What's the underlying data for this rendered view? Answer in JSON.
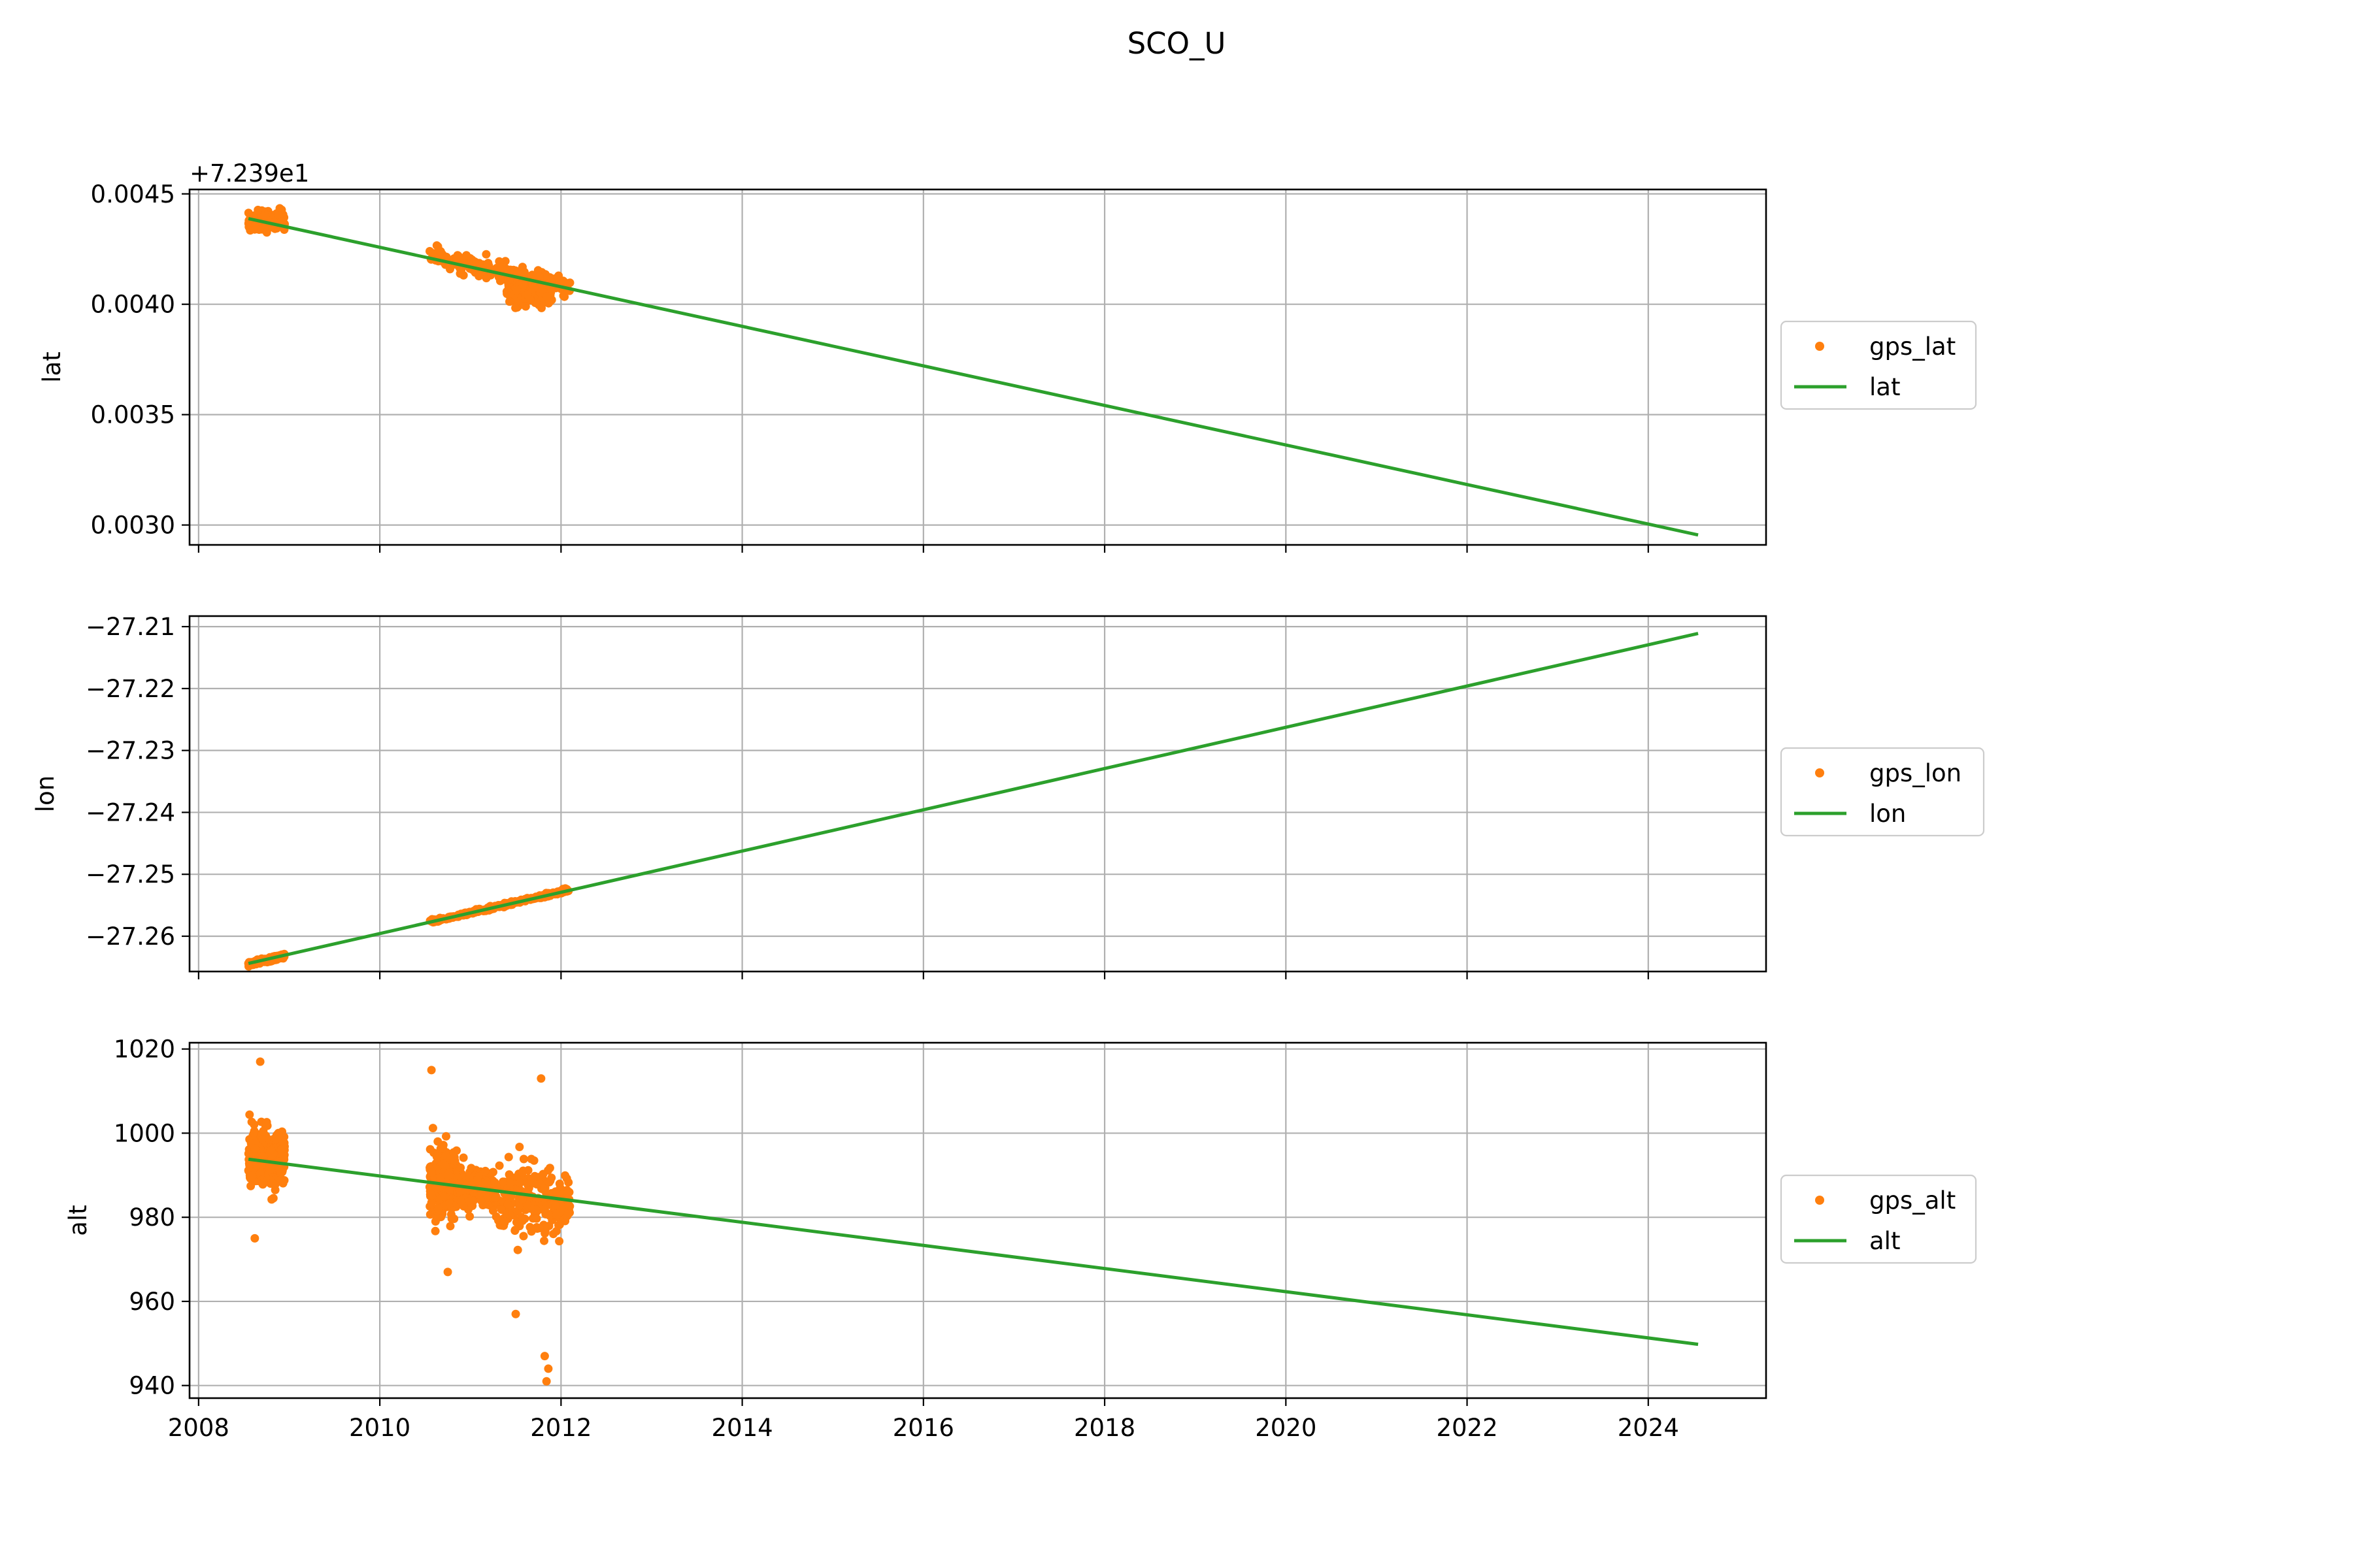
{
  "figure": {
    "suptitle": "SCO_U"
  },
  "colors": {
    "scatter": "#ff7f0e",
    "line": "#2ca02c",
    "grid": "#b0b0b0",
    "axes": "#000000"
  },
  "chart_data": [
    {
      "type": "scatter",
      "title": "",
      "xlabel": "",
      "ylabel": "lat",
      "y_offset_label": "+7.239e1",
      "xlim": [
        2007.9,
        2025.3
      ],
      "ylim": [
        0.00291,
        0.00452
      ],
      "xticks": [
        2008,
        2010,
        2012,
        2014,
        2016,
        2018,
        2020,
        2022,
        2024
      ],
      "xtick_labels_visible": false,
      "yticks": [
        0.003,
        0.0035,
        0.004,
        0.0045
      ],
      "ytick_labels": [
        "0.0030",
        "0.0035",
        "0.0040",
        "0.0045"
      ],
      "grid": true,
      "legend_placement": "center right, outside axes",
      "series": [
        {
          "name": "gps_lat",
          "kind": "points",
          "clusters": [
            {
              "x_range": [
                2008.55,
                2008.95
              ],
              "y_center": 0.004375,
              "y_spread": 4e-05
            },
            {
              "x_range": [
                2010.55,
                2012.1
              ],
              "y_center_start": 0.00422,
              "y_center_end": 0.00407,
              "y_spread": 4e-05
            },
            {
              "x_range": [
                2011.4,
                2011.9
              ],
              "y_center": 0.00405,
              "y_spread": 5e-05
            }
          ]
        },
        {
          "name": "lat",
          "kind": "line",
          "x": [
            2008.55,
            2024.55
          ],
          "y": [
            0.004388,
            0.002955
          ]
        }
      ]
    },
    {
      "type": "scatter",
      "title": "",
      "xlabel": "",
      "ylabel": "lon",
      "xlim": [
        2007.9,
        2025.3
      ],
      "ylim": [
        -27.2657,
        -27.2083
      ],
      "xticks": [
        2008,
        2010,
        2012,
        2014,
        2016,
        2018,
        2020,
        2022,
        2024
      ],
      "xtick_labels_visible": false,
      "yticks": [
        -27.26,
        -27.25,
        -27.24,
        -27.23,
        -27.22,
        -27.21
      ],
      "ytick_labels": [
        "−27.26",
        "−27.25",
        "−27.24",
        "−27.23",
        "−27.22",
        "−27.21"
      ],
      "grid": true,
      "legend_placement": "center right, outside axes",
      "series": [
        {
          "name": "gps_lon",
          "kind": "points",
          "clusters": [
            {
              "x_range": [
                2008.55,
                2008.95
              ],
              "y_center_start": -27.2645,
              "y_center_end": -27.2632,
              "y_spread": 0.0003
            },
            {
              "x_range": [
                2010.55,
                2012.1
              ],
              "y_center_start": -27.2577,
              "y_center_end": -27.2525,
              "y_spread": 0.0003
            }
          ]
        },
        {
          "name": "lon",
          "kind": "line",
          "x": [
            2008.55,
            2024.55
          ],
          "y": [
            -27.2644,
            -27.2111
          ]
        }
      ]
    },
    {
      "type": "scatter",
      "title": "",
      "xlabel": "",
      "ylabel": "alt",
      "xlim": [
        2007.9,
        2025.3
      ],
      "ylim": [
        937.0,
        1021.5
      ],
      "xticks": [
        2008,
        2010,
        2012,
        2014,
        2016,
        2018,
        2020,
        2022,
        2024
      ],
      "xtick_labels": [
        "2008",
        "2010",
        "2012",
        "2014",
        "2016",
        "2018",
        "2020",
        "2022",
        "2024"
      ],
      "xtick_labels_visible": true,
      "yticks": [
        940,
        960,
        980,
        1000,
        1020
      ],
      "ytick_labels": [
        "940",
        "960",
        "980",
        "1000",
        "1020"
      ],
      "grid": true,
      "legend_placement": "center right, outside axes",
      "series": [
        {
          "name": "gps_alt",
          "kind": "points",
          "clusters": [
            {
              "x_range": [
                2008.55,
                2008.95
              ],
              "y_center": 994,
              "y_spread": 7
            },
            {
              "x_range": [
                2010.55,
                2010.85
              ],
              "y_center": 988,
              "y_spread": 8
            },
            {
              "x_range": [
                2010.85,
                2011.25
              ],
              "y_center": 987,
              "y_spread": 4
            },
            {
              "x_range": [
                2011.25,
                2012.1
              ],
              "y_center": 984,
              "y_spread": 8
            }
          ],
          "outliers": [
            {
              "x": 2008.68,
              "y": 1017
            },
            {
              "x": 2010.57,
              "y": 1015
            },
            {
              "x": 2011.78,
              "y": 1013
            },
            {
              "x": 2011.5,
              "y": 957
            },
            {
              "x": 2011.82,
              "y": 947
            },
            {
              "x": 2011.86,
              "y": 944
            },
            {
              "x": 2011.84,
              "y": 941
            },
            {
              "x": 2008.62,
              "y": 975
            },
            {
              "x": 2010.75,
              "y": 967
            }
          ]
        },
        {
          "name": "alt",
          "kind": "line",
          "x": [
            2008.55,
            2024.55
          ],
          "y": [
            993.8,
            949.8
          ]
        }
      ]
    }
  ]
}
